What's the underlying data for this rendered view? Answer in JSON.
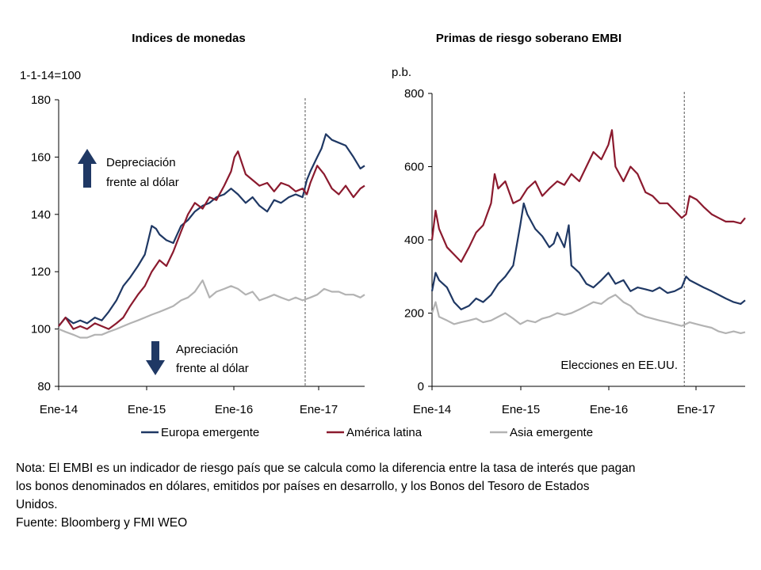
{
  "chart_data": [
    {
      "type": "line",
      "title": "Indices de monedas",
      "ylabel": "1-1-14=100",
      "xlabel": "",
      "x_ticks": [
        "Ene-14",
        "Ene-15",
        "Ene-16",
        "Ene-17"
      ],
      "x_range": [
        2014.0,
        2017.55
      ],
      "ylim": [
        80,
        180
      ],
      "y_ticks": [
        80,
        100,
        120,
        140,
        160,
        180
      ],
      "grid": false,
      "vline": 2016.86,
      "annotations": {
        "up": [
          "Depreciación",
          "frente al dólar"
        ],
        "down": [
          "Apreciación",
          "frente al dólar"
        ]
      },
      "series": [
        {
          "name": "Europa emergente",
          "color": "#1f3864",
          "x": [
            2014.0,
            2014.08,
            2014.17,
            2014.25,
            2014.33,
            2014.42,
            2014.5,
            2014.58,
            2014.67,
            2014.75,
            2014.83,
            2014.92,
            2015.0,
            2015.04,
            2015.08,
            2015.13,
            2015.17,
            2015.25,
            2015.33,
            2015.42,
            2015.5,
            2015.58,
            2015.67,
            2015.75,
            2015.83,
            2015.92,
            2016.0,
            2016.08,
            2016.17,
            2016.25,
            2016.33,
            2016.42,
            2016.5,
            2016.58,
            2016.67,
            2016.75,
            2016.83,
            2016.88,
            2016.92,
            2017.0,
            2017.05,
            2017.1,
            2017.17,
            2017.25,
            2017.33,
            2017.42,
            2017.5,
            2017.55
          ],
          "values": [
            101,
            104,
            102,
            103,
            102,
            104,
            103,
            106,
            110,
            115,
            118,
            122,
            126,
            131,
            136,
            135,
            133,
            131,
            130,
            136,
            138,
            141,
            143,
            144,
            146,
            147,
            149,
            147,
            144,
            146,
            143,
            141,
            145,
            144,
            146,
            147,
            146,
            152,
            155,
            160,
            163,
            168,
            166,
            165,
            164,
            160,
            156,
            157
          ]
        },
        {
          "name": "América latina",
          "color": "#8b1a2e",
          "x": [
            2014.0,
            2014.08,
            2014.17,
            2014.25,
            2014.33,
            2014.42,
            2014.5,
            2014.58,
            2014.67,
            2014.75,
            2014.83,
            2014.92,
            2015.0,
            2015.08,
            2015.17,
            2015.25,
            2015.33,
            2015.42,
            2015.5,
            2015.58,
            2015.67,
            2015.75,
            2015.83,
            2015.92,
            2016.0,
            2016.04,
            2016.08,
            2016.17,
            2016.25,
            2016.33,
            2016.42,
            2016.5,
            2016.58,
            2016.67,
            2016.75,
            2016.83,
            2016.88,
            2016.92,
            2017.0,
            2017.08,
            2017.17,
            2017.25,
            2017.33,
            2017.42,
            2017.5,
            2017.55
          ],
          "values": [
            101,
            104,
            100,
            101,
            100,
            102,
            101,
            100,
            102,
            104,
            108,
            112,
            115,
            120,
            124,
            122,
            127,
            134,
            140,
            144,
            142,
            146,
            145,
            150,
            155,
            160,
            162,
            154,
            152,
            150,
            151,
            148,
            151,
            150,
            148,
            149,
            147,
            151,
            157,
            154,
            149,
            147,
            150,
            146,
            149,
            150
          ]
        },
        {
          "name": "Asia emergente",
          "color": "#b3b3b3",
          "x": [
            2014.0,
            2014.08,
            2014.17,
            2014.25,
            2014.33,
            2014.42,
            2014.5,
            2014.58,
            2014.67,
            2014.75,
            2014.83,
            2014.92,
            2015.0,
            2015.08,
            2015.17,
            2015.25,
            2015.33,
            2015.42,
            2015.5,
            2015.58,
            2015.67,
            2015.75,
            2015.83,
            2015.92,
            2016.0,
            2016.08,
            2016.17,
            2016.25,
            2016.33,
            2016.42,
            2016.5,
            2016.58,
            2016.67,
            2016.75,
            2016.83,
            2016.92,
            2017.0,
            2017.08,
            2017.17,
            2017.25,
            2017.33,
            2017.42,
            2017.5,
            2017.55
          ],
          "values": [
            100,
            99,
            98,
            97,
            97,
            98,
            98,
            99,
            100,
            101,
            102,
            103,
            104,
            105,
            106,
            107,
            108,
            110,
            111,
            113,
            117,
            111,
            113,
            114,
            115,
            114,
            112,
            113,
            110,
            111,
            112,
            111,
            110,
            111,
            110,
            111,
            112,
            114,
            113,
            113,
            112,
            112,
            111,
            112
          ]
        }
      ]
    },
    {
      "type": "line",
      "title": "Primas de riesgo soberano EMBI",
      "ylabel": "p.b.",
      "xlabel": "",
      "x_ticks": [
        "Ene-14",
        "Ene-15",
        "Ene-16",
        "Ene-17"
      ],
      "x_range": [
        2014.0,
        2017.55
      ],
      "ylim": [
        0,
        800
      ],
      "y_ticks": [
        0,
        200,
        400,
        600,
        800
      ],
      "grid": false,
      "vline": 2016.86,
      "annotations": {
        "vline_label": "Elecciones en EE.UU."
      },
      "series": [
        {
          "name": "Europa emergente",
          "color": "#1f3864",
          "x": [
            2014.0,
            2014.04,
            2014.08,
            2014.17,
            2014.25,
            2014.33,
            2014.42,
            2014.5,
            2014.58,
            2014.67,
            2014.75,
            2014.83,
            2014.92,
            2015.0,
            2015.04,
            2015.08,
            2015.17,
            2015.25,
            2015.33,
            2015.38,
            2015.42,
            2015.5,
            2015.55,
            2015.58,
            2015.67,
            2015.75,
            2015.83,
            2015.92,
            2016.0,
            2016.08,
            2016.17,
            2016.25,
            2016.33,
            2016.42,
            2016.5,
            2016.58,
            2016.67,
            2016.75,
            2016.83,
            2016.88,
            2016.92,
            2017.0,
            2017.08,
            2017.17,
            2017.25,
            2017.33,
            2017.42,
            2017.5,
            2017.55
          ],
          "values": [
            260,
            310,
            290,
            270,
            230,
            210,
            220,
            240,
            230,
            250,
            280,
            300,
            330,
            440,
            500,
            470,
            430,
            410,
            380,
            390,
            420,
            380,
            440,
            330,
            310,
            280,
            270,
            290,
            310,
            280,
            290,
            260,
            270,
            265,
            260,
            270,
            255,
            260,
            270,
            300,
            290,
            280,
            270,
            260,
            250,
            240,
            230,
            225,
            235
          ]
        },
        {
          "name": "América latina",
          "color": "#8b1a2e",
          "x": [
            2014.0,
            2014.04,
            2014.08,
            2014.17,
            2014.25,
            2014.33,
            2014.42,
            2014.5,
            2014.58,
            2014.67,
            2014.71,
            2014.75,
            2014.83,
            2014.92,
            2015.0,
            2015.08,
            2015.17,
            2015.25,
            2015.33,
            2015.42,
            2015.5,
            2015.58,
            2015.67,
            2015.75,
            2015.83,
            2015.92,
            2016.0,
            2016.04,
            2016.08,
            2016.17,
            2016.25,
            2016.33,
            2016.42,
            2016.5,
            2016.58,
            2016.67,
            2016.75,
            2016.83,
            2016.88,
            2016.92,
            2017.0,
            2017.08,
            2017.17,
            2017.25,
            2017.33,
            2017.42,
            2017.5,
            2017.55
          ],
          "values": [
            400,
            480,
            430,
            380,
            360,
            340,
            380,
            420,
            440,
            500,
            580,
            540,
            560,
            500,
            510,
            540,
            560,
            520,
            540,
            560,
            550,
            580,
            560,
            600,
            640,
            620,
            660,
            700,
            600,
            560,
            600,
            580,
            530,
            520,
            500,
            500,
            480,
            460,
            470,
            520,
            510,
            490,
            470,
            460,
            450,
            450,
            445,
            460
          ]
        },
        {
          "name": "Asia emergente",
          "color": "#b3b3b3",
          "x": [
            2014.0,
            2014.04,
            2014.08,
            2014.17,
            2014.25,
            2014.33,
            2014.42,
            2014.5,
            2014.58,
            2014.67,
            2014.75,
            2014.83,
            2014.92,
            2015.0,
            2015.08,
            2015.17,
            2015.25,
            2015.33,
            2015.42,
            2015.5,
            2015.58,
            2015.67,
            2015.75,
            2015.83,
            2015.92,
            2016.0,
            2016.08,
            2016.17,
            2016.25,
            2016.33,
            2016.42,
            2016.5,
            2016.58,
            2016.67,
            2016.75,
            2016.83,
            2016.92,
            2017.0,
            2017.08,
            2017.17,
            2017.25,
            2017.33,
            2017.42,
            2017.5,
            2017.55
          ],
          "values": [
            200,
            230,
            190,
            180,
            170,
            175,
            180,
            185,
            175,
            180,
            190,
            200,
            185,
            170,
            180,
            175,
            185,
            190,
            200,
            195,
            200,
            210,
            220,
            230,
            225,
            240,
            250,
            230,
            220,
            200,
            190,
            185,
            180,
            175,
            170,
            165,
            175,
            170,
            165,
            160,
            150,
            145,
            150,
            145,
            148
          ]
        }
      ]
    }
  ],
  "legend": [
    {
      "name": "Europa emergente",
      "color": "#1f3864"
    },
    {
      "name": "América latina",
      "color": "#8b1a2e"
    },
    {
      "name": "Asia emergente",
      "color": "#b3b3b3"
    }
  ],
  "arrow_color": "#1f3864",
  "note": {
    "line1": "Nota: El EMBI es un indicador de riesgo país que se calcula como la diferencia entre la tasa de interés que pagan",
    "line2": "los bonos denominados en dólares, emitidos por países en desarrollo, y los Bonos del Tesoro de Estados",
    "line3": "Unidos.",
    "source": "Fuente: Bloomberg y FMI WEO"
  }
}
